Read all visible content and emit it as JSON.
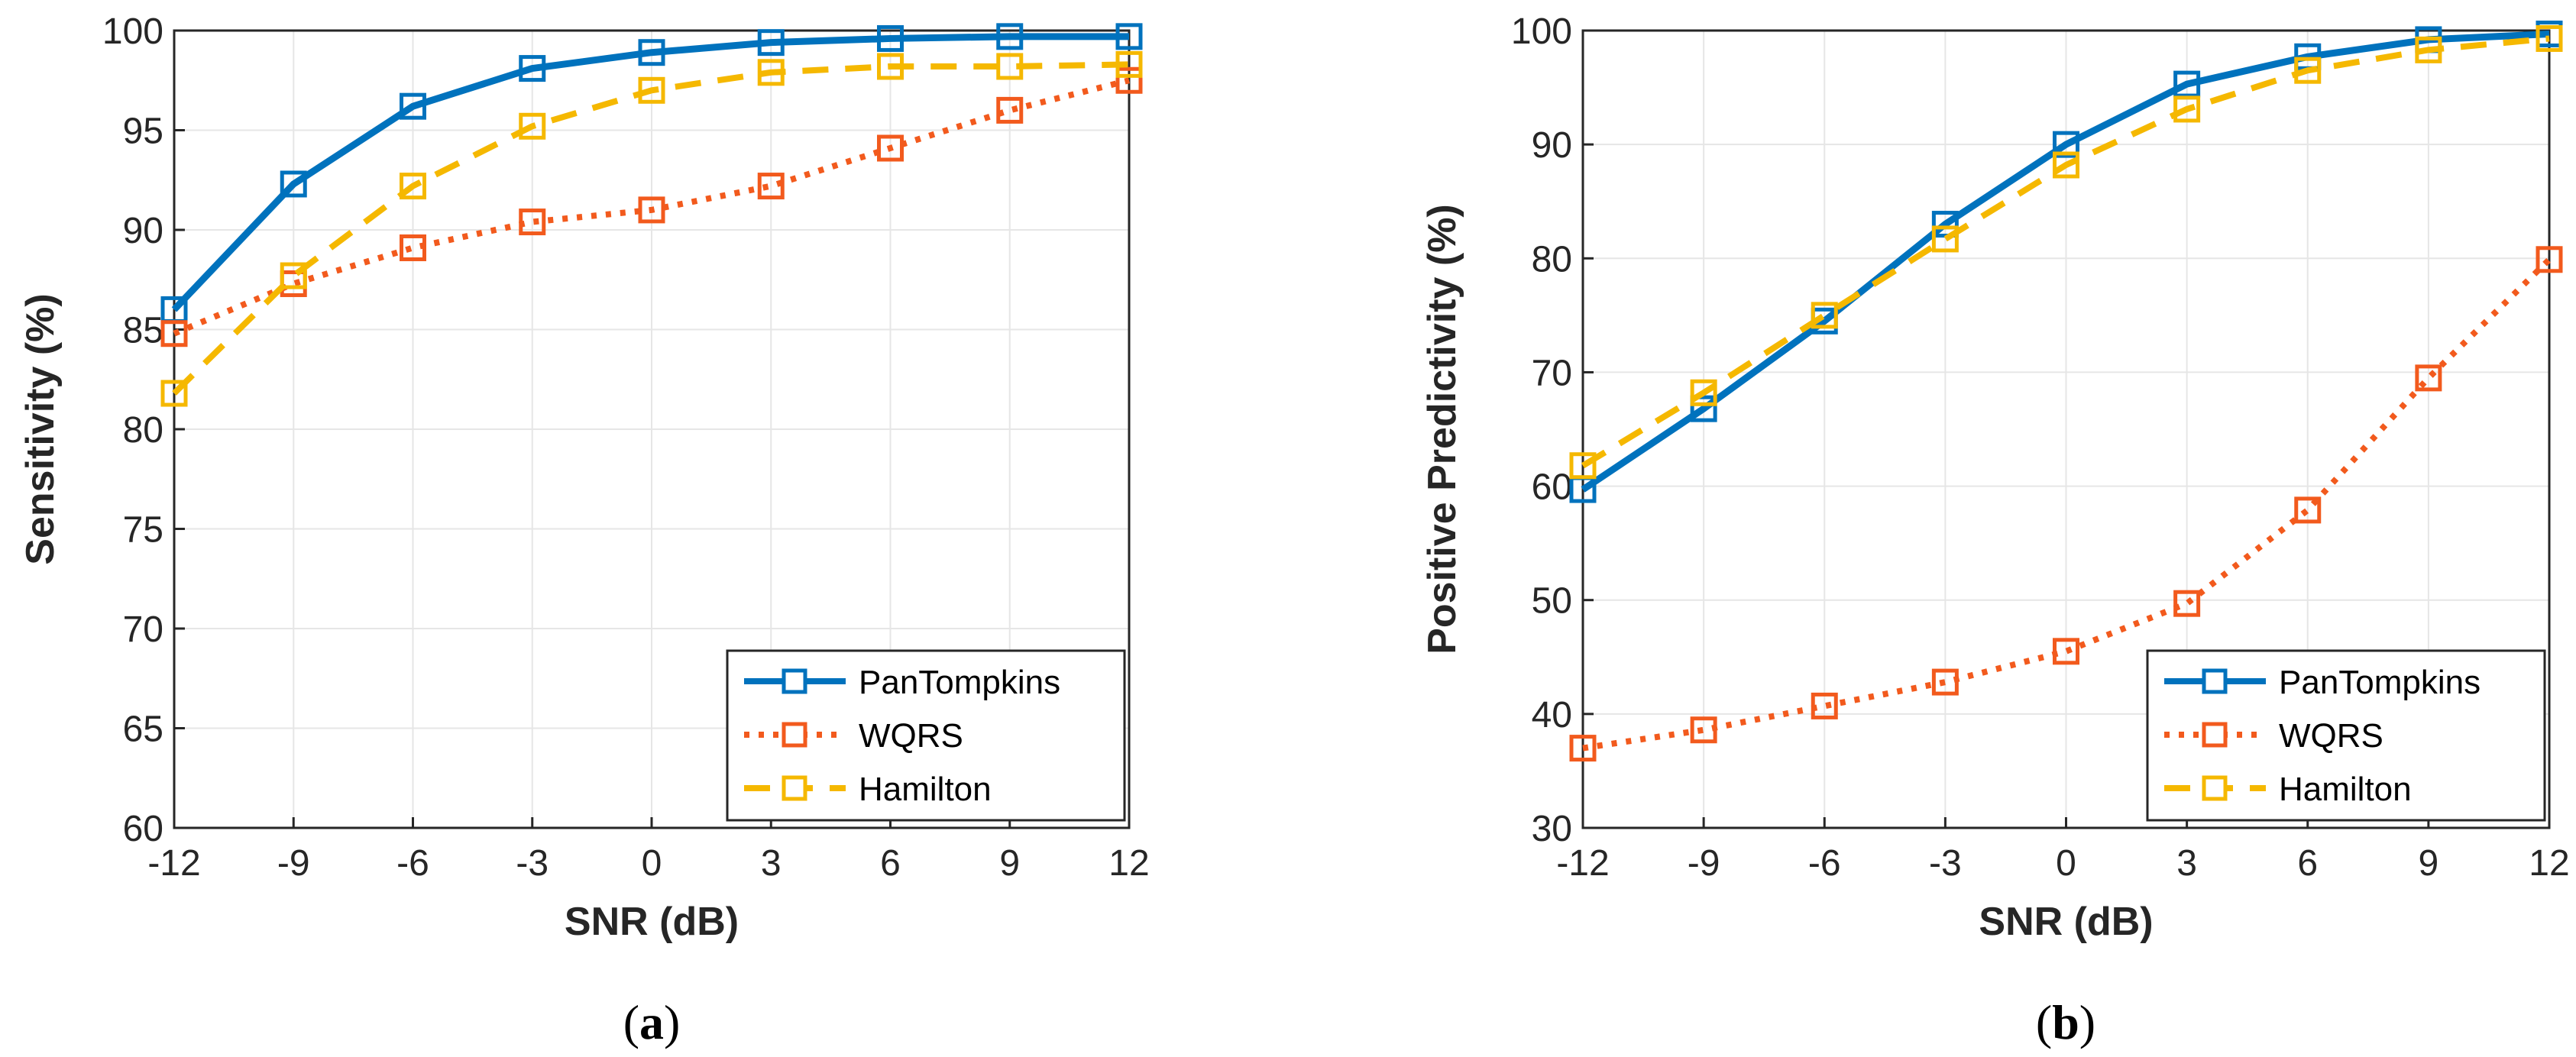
{
  "colors": {
    "pantompkins": "#0072BD",
    "wqrs": "#F25A1D",
    "hamilton": "#F5B800",
    "axis": "#262626",
    "grid": "#E6E6E6"
  },
  "chart_data": [
    {
      "type": "line",
      "panel_letter": "a",
      "caption": "(a)",
      "title": "",
      "xlabel": "SNR (dB)",
      "ylabel": "Sensitivity (%)",
      "x": [
        -12,
        -9,
        -6,
        -3,
        0,
        3,
        6,
        9,
        12
      ],
      "x_ticks": [
        "-12",
        "-9",
        "-6",
        "-3",
        "0",
        "3",
        "6",
        "9",
        "12"
      ],
      "xlim": [
        -12,
        12
      ],
      "ylim": [
        60,
        100
      ],
      "y_ticks": [
        60,
        65,
        70,
        75,
        80,
        85,
        90,
        95,
        100
      ],
      "grid": true,
      "legend_position": "bottom-right",
      "series": [
        {
          "name": "PanTompkins",
          "style": "solid",
          "marker": "square",
          "values": [
            86.0,
            92.3,
            96.2,
            98.1,
            98.9,
            99.4,
            99.6,
            99.7,
            99.7
          ]
        },
        {
          "name": "WQRS",
          "style": "dotted",
          "marker": "square",
          "values": [
            84.8,
            87.3,
            89.1,
            90.4,
            91.0,
            92.2,
            94.1,
            96.0,
            97.5
          ]
        },
        {
          "name": "Hamilton",
          "style": "dashed",
          "marker": "square",
          "values": [
            81.8,
            87.7,
            92.2,
            95.2,
            97.0,
            97.9,
            98.2,
            98.2,
            98.3
          ]
        }
      ]
    },
    {
      "type": "line",
      "panel_letter": "b",
      "caption": "(b)",
      "title": "",
      "xlabel": "SNR (dB)",
      "ylabel": "Positive Predictivity (%)",
      "x": [
        -12,
        -9,
        -6,
        -3,
        0,
        3,
        6,
        9,
        12
      ],
      "x_ticks": [
        "-12",
        "-9",
        "-6",
        "-3",
        "0",
        "3",
        "6",
        "9",
        "12"
      ],
      "xlim": [
        -12,
        12
      ],
      "ylim": [
        30,
        100
      ],
      "y_ticks": [
        30,
        40,
        50,
        60,
        70,
        80,
        90,
        100
      ],
      "grid": true,
      "legend_position": "bottom-right",
      "series": [
        {
          "name": "PanTompkins",
          "style": "solid",
          "marker": "square",
          "values": [
            59.7,
            66.8,
            74.5,
            83.0,
            90.0,
            95.3,
            97.7,
            99.2,
            99.7
          ]
        },
        {
          "name": "WQRS",
          "style": "dotted",
          "marker": "square",
          "values": [
            37.0,
            38.6,
            40.7,
            42.8,
            45.5,
            49.7,
            57.9,
            69.5,
            79.9
          ]
        },
        {
          "name": "Hamilton",
          "style": "dashed",
          "marker": "square",
          "values": [
            61.8,
            68.2,
            75.0,
            81.7,
            88.2,
            93.1,
            96.5,
            98.3,
            99.3
          ]
        }
      ]
    }
  ]
}
